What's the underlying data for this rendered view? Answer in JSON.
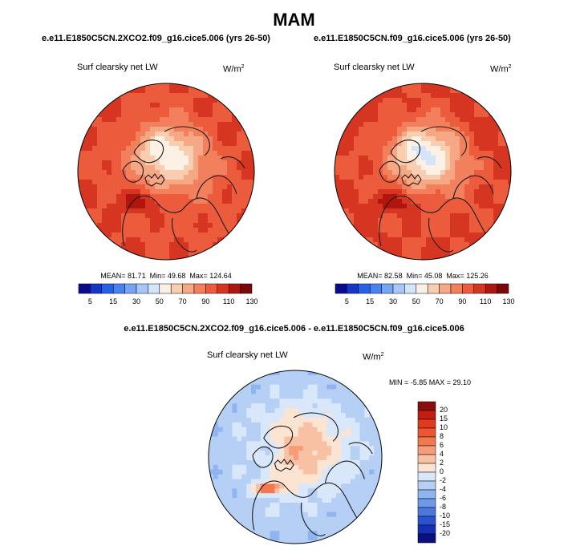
{
  "season": "MAM",
  "colors": {
    "outline": "#000000",
    "land": "#1a1a1a"
  },
  "chart_data": [
    {
      "type": "heatmap",
      "projection": "north-polar-stereographic",
      "case": "e.e11.E1850C5CN.2XCO2.f09_g16.cice5.006 (yrs 26-50)",
      "variable": "Surf clearsky net LW",
      "units_base": "W/m",
      "units_exp": "2",
      "stats": {
        "mean": "81.71",
        "min": "49.68",
        "max": "124.64"
      },
      "stats_labels": {
        "mean": "MEAN=",
        "min": "Min=",
        "max": "Max="
      },
      "colorbar": {
        "orientation": "horizontal",
        "ticks": [
          "5",
          "15",
          "30",
          "50",
          "70",
          "90",
          "110",
          "130"
        ],
        "colors": [
          "#0a0a8c",
          "#1437c8",
          "#2861e6",
          "#4a82f0",
          "#77a5f5",
          "#a6c7f8",
          "#d3e4fb",
          "#fdf0e4",
          "#f9cdb0",
          "#f6a884",
          "#f2805c",
          "#ec5b3b",
          "#d63621",
          "#b0150f",
          "#7a0808"
        ]
      },
      "field": {
        "pole": 62,
        "cold_lobe": 50,
        "atlantic_warm": 122,
        "eurasia": 98,
        "pacific": 108,
        "rim": 100
      }
    },
    {
      "type": "heatmap",
      "projection": "north-polar-stereographic",
      "case": "e.e11.E1850C5CN.f09_g16.cice5.006 (yrs 26-50)",
      "variable": "Surf clearsky net LW",
      "units_base": "W/m",
      "units_exp": "2",
      "stats": {
        "mean": "82.58",
        "min": "45.08",
        "max": "125.26"
      },
      "stats_labels": {
        "mean": "MEAN=",
        "min": "Min=",
        "max": "Max="
      },
      "colorbar": {
        "orientation": "horizontal",
        "ticks": [
          "5",
          "15",
          "30",
          "50",
          "70",
          "90",
          "110",
          "130"
        ],
        "colors": [
          "#0a0a8c",
          "#1437c8",
          "#2861e6",
          "#4a82f0",
          "#77a5f5",
          "#a6c7f8",
          "#d3e4fb",
          "#fdf0e4",
          "#f9cdb0",
          "#f6a884",
          "#f2805c",
          "#ec5b3b",
          "#d63621",
          "#b0150f",
          "#7a0808"
        ]
      },
      "field": {
        "pole": 58,
        "cold_lobe": 46,
        "atlantic_warm": 123,
        "eurasia": 100,
        "pacific": 110,
        "rim": 102
      }
    },
    {
      "type": "heatmap",
      "projection": "north-polar-stereographic",
      "case": "e.e11.E1850C5CN.2XCO2.f09_g16.cice5.006 - e.e11.E1850C5CN.f09_g16.cice5.006",
      "variable": "Surf clearsky net LW",
      "units_base": "W/m",
      "units_exp": "2",
      "stats_text": "MIN =  -5.85 MAX =  29.10",
      "colorbar": {
        "orientation": "vertical",
        "ticks": [
          "20",
          "15",
          "10",
          "8",
          "6",
          "4",
          "2",
          "0",
          "-2",
          "-4",
          "-6",
          "-8",
          "-10",
          "-15",
          "-20"
        ],
        "colors": [
          "#8a0c0c",
          "#c21d10",
          "#e2391d",
          "#ef5530",
          "#f3784f",
          "#f69c78",
          "#f9c1a3",
          "#fce4d2",
          "#d9e7fa",
          "#b6cff5",
          "#90b4ef",
          "#6e98e8",
          "#4a78de",
          "#2a52cf",
          "#1530b4",
          "#0a1080"
        ]
      },
      "field": {
        "pole": 2.5,
        "cold_lobe": -1.5,
        "atlantic_warm": 12,
        "eurasia": -3,
        "pacific": -2.5,
        "rim": -3.5
      }
    }
  ]
}
